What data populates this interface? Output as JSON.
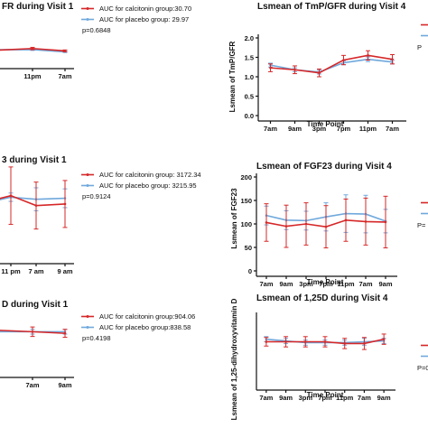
{
  "colors": {
    "calcitonin": "#d62728",
    "placebo": "#6fa8dc",
    "axis": "#111111"
  },
  "chart_data": [
    {
      "id": "p1",
      "type": "line",
      "title": "FR during Visit 1",
      "xlabel": "",
      "ylabel": "",
      "categories": [
        "7am",
        "11pm",
        "7am"
      ],
      "series": [
        {
          "name": "calcitonin",
          "values": [
            1.1,
            1.25,
            1.05
          ],
          "err": [
            0.04,
            0.1,
            0.08
          ]
        },
        {
          "name": "placebo",
          "values": [
            1.15,
            1.16,
            0.97
          ],
          "err": [
            0.04,
            0.07,
            0.06
          ]
        }
      ],
      "ylim": [
        0,
        2
      ],
      "legend": [
        "AUC for calcitonin group:30.70",
        "AUC for placebo group: 29.97",
        "p=0.6848"
      ]
    },
    {
      "id": "p2",
      "type": "line",
      "title": "Lsmean of TmP/GFR during Visit 4",
      "xlabel": "Time Point",
      "ylabel": "Lsmean of TmP/GFR",
      "categories": [
        "7am",
        "9am",
        "3pm",
        "7pm",
        "11pm",
        "7am"
      ],
      "series": [
        {
          "name": "calcitonin",
          "values": [
            1.23,
            1.18,
            1.1,
            1.43,
            1.55,
            1.45
          ],
          "err": [
            0.1,
            0.1,
            0.1,
            0.12,
            0.12,
            0.12
          ]
        },
        {
          "name": "placebo",
          "values": [
            1.3,
            1.18,
            1.12,
            1.36,
            1.45,
            1.38
          ],
          "err": [
            0.05,
            0.05,
            0.05,
            0.05,
            0.06,
            0.05
          ]
        }
      ],
      "ylim": [
        0,
        2
      ],
      "yticks": [
        0.0,
        0.5,
        1.0,
        1.5,
        2.0
      ],
      "legend": [
        "P"
      ]
    },
    {
      "id": "p3",
      "type": "line",
      "title": "3 during Visit 1",
      "xlabel": "",
      "ylabel": "",
      "categories": [
        "",
        "11 pm",
        "7 am",
        "9 am"
      ],
      "series": [
        {
          "name": "calcitonin",
          "values": [
            112,
            120,
            101,
            104
          ],
          "err": [
            8,
            55,
            45,
            45
          ]
        },
        {
          "name": "placebo",
          "values": [
            110,
            117,
            113,
            115
          ],
          "err": [
            5,
            8,
            22,
            18
          ]
        }
      ],
      "ylim": [
        0,
        180
      ],
      "legend": [
        "AUC for calcitonin group: 3172.34",
        "AUC for placebo group: 3215.95",
        "p=0.9124"
      ]
    },
    {
      "id": "p4",
      "type": "line",
      "title": "Lsmean of FGF23 during Visit 4",
      "xlabel": "Time Point",
      "ylabel": "Lsmean of FGF23",
      "categories": [
        "7am",
        "9am",
        "3pm",
        "7pm",
        "11pm",
        "7am",
        "9am"
      ],
      "series": [
        {
          "name": "calcitonin",
          "values": [
            103,
            95,
            100,
            94,
            108,
            105,
            104
          ],
          "err": [
            40,
            45,
            45,
            45,
            45,
            50,
            55
          ]
        },
        {
          "name": "placebo",
          "values": [
            118,
            108,
            107,
            115,
            122,
            121,
            106
          ],
          "err": [
            20,
            20,
            20,
            30,
            40,
            40,
            25
          ]
        }
      ],
      "ylim": [
        0,
        200
      ],
      "yticks": [
        0,
        50,
        100,
        150,
        200
      ],
      "legend": [
        "P="
      ]
    },
    {
      "id": "p5",
      "type": "line",
      "title": "D during Visit 1",
      "xlabel": "",
      "ylabel": "",
      "categories": [
        "",
        "7am",
        "9am"
      ],
      "series": [
        {
          "name": "calcitonin",
          "values": [
            53,
            51,
            49
          ],
          "err": [
            3,
            6,
            5
          ]
        },
        {
          "name": "placebo",
          "values": [
            51,
            51,
            51
          ],
          "err": [
            2,
            3,
            3
          ]
        }
      ],
      "ylim": [
        0,
        80
      ],
      "legend": [
        "AUC for calcitonin group:904.06",
        "AUC for placebo group:838.58",
        "p=0.4198"
      ]
    },
    {
      "id": "p6",
      "type": "line",
      "title": "Lsmean of 1,25D during Visit 4",
      "xlabel": "Time Point",
      "ylabel": "Lsmean of 1,25-dihydroxyvitamin D",
      "categories": [
        "7am",
        "9am",
        "3pm",
        "7pm",
        "11pm",
        "7am",
        "9am"
      ],
      "series": [
        {
          "name": "calcitonin",
          "values": [
            50,
            50,
            50,
            50,
            48,
            48,
            53
          ],
          "err": [
            5,
            6,
            6,
            6,
            6,
            7,
            6
          ]
        },
        {
          "name": "placebo",
          "values": [
            53,
            51,
            49,
            49,
            49,
            50,
            51
          ],
          "err": [
            3,
            3,
            3,
            3,
            3,
            4,
            3
          ]
        }
      ],
      "ylim": [
        0,
        80
      ],
      "legend": [
        "P=0."
      ]
    }
  ]
}
